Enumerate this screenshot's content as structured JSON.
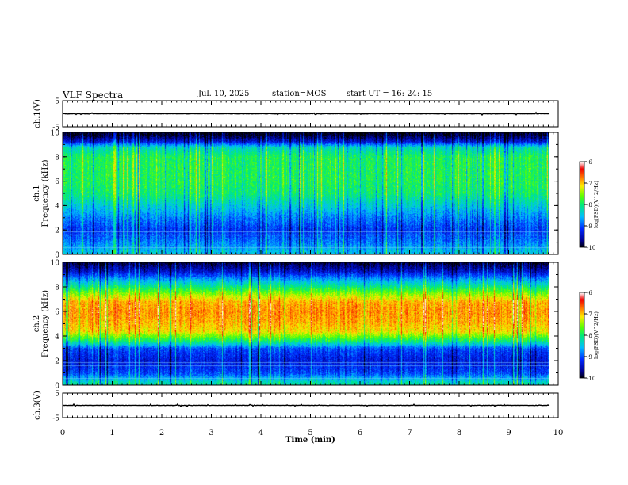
{
  "header": {
    "title": "VLF Spectra",
    "date": "Jul. 10, 2025",
    "station": "station=MOS",
    "start": "start UT = 16: 24: 15"
  },
  "chart_data": [
    {
      "type": "line",
      "panel": "ch1-waveform",
      "ylabel": "ch.1(V)",
      "ylim": [
        -5,
        5
      ],
      "yticks": [
        5,
        -5
      ],
      "xlim": [
        0,
        10
      ],
      "baseline_value": 0,
      "trace_color": "#000000"
    },
    {
      "type": "heatmap",
      "panel": "ch1-spectrogram",
      "ylabel": "ch.1 Frequency (kHz)",
      "ylim": [
        0,
        10
      ],
      "yticks": [
        0,
        2,
        4,
        6,
        8,
        10
      ],
      "xlim": [
        0,
        9.83
      ],
      "colorbar": {
        "label": "log(PSD)(V^2/Hz)",
        "range": [
          -10,
          -6
        ],
        "ticks": [
          -6,
          -7,
          -8,
          -9,
          -10
        ]
      },
      "lines_khz": [
        0.6,
        1.6,
        1.9
      ],
      "profile": [
        {
          "freq": 0.3,
          "level": -8.5
        },
        {
          "freq": 1.0,
          "level": -8.8
        },
        {
          "freq": 2.0,
          "level": -9.1
        },
        {
          "freq": 3.0,
          "level": -8.8
        },
        {
          "freq": 4.0,
          "level": -8.4
        },
        {
          "freq": 5.0,
          "level": -8.0
        },
        {
          "freq": 6.0,
          "level": -7.9
        },
        {
          "freq": 7.0,
          "level": -7.9
        },
        {
          "freq": 8.0,
          "level": -7.9
        },
        {
          "freq": 8.8,
          "level": -8.3
        },
        {
          "freq": 9.3,
          "level": -9.4
        },
        {
          "freq": 9.8,
          "level": -9.9
        }
      ]
    },
    {
      "type": "heatmap",
      "panel": "ch2-spectrogram",
      "ylabel": "ch.2 Frequency (kHz)",
      "ylim": [
        0,
        10
      ],
      "yticks": [
        0,
        2,
        4,
        6,
        8,
        10
      ],
      "xlim": [
        0,
        9.83
      ],
      "colorbar": {
        "label": "log(PSD)(V^2/Hz)",
        "range": [
          -10,
          -6
        ],
        "ticks": [
          -6,
          -7,
          -8,
          -9,
          -10
        ]
      },
      "lines_khz": [
        0.6,
        1.6,
        1.9
      ],
      "profile": [
        {
          "freq": 0.2,
          "level": -8.2
        },
        {
          "freq": 1.0,
          "level": -9.0
        },
        {
          "freq": 2.0,
          "level": -9.3
        },
        {
          "freq": 3.0,
          "level": -9.0
        },
        {
          "freq": 3.6,
          "level": -8.0
        },
        {
          "freq": 4.4,
          "level": -7.1
        },
        {
          "freq": 5.2,
          "level": -6.9
        },
        {
          "freq": 6.0,
          "level": -6.8
        },
        {
          "freq": 6.8,
          "level": -6.9
        },
        {
          "freq": 7.4,
          "level": -7.4
        },
        {
          "freq": 8.0,
          "level": -8.0
        },
        {
          "freq": 8.6,
          "level": -8.6
        },
        {
          "freq": 9.3,
          "level": -9.4
        },
        {
          "freq": 9.9,
          "level": -9.8
        }
      ]
    },
    {
      "type": "line",
      "panel": "ch3-waveform",
      "ylabel": "ch.3(V)",
      "ylim": [
        -5,
        5
      ],
      "yticks": [
        5,
        -5
      ],
      "xlim": [
        0,
        10
      ],
      "xlabel": "Time (min)",
      "xticks": [
        0,
        1,
        2,
        3,
        4,
        5,
        6,
        7,
        8,
        9,
        10
      ],
      "baseline_value": 0,
      "trace_color": "#000000"
    }
  ]
}
